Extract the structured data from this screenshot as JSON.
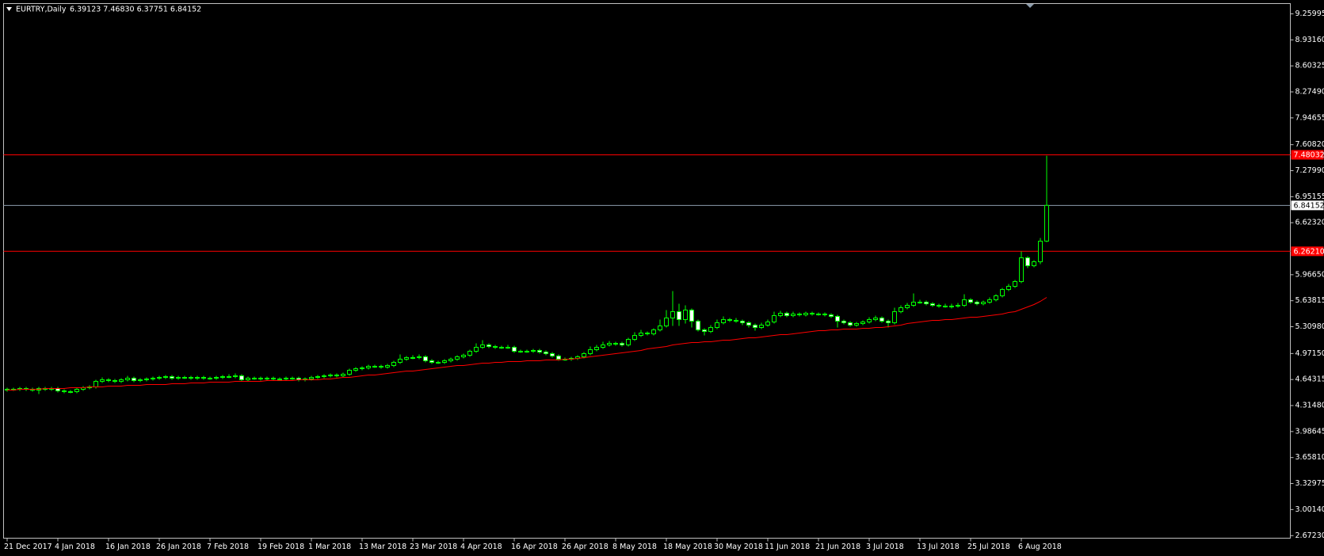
{
  "chart_data": {
    "type": "candlestick",
    "title": "EURTRY,Daily",
    "title_values": "6.39123 7.46830 6.37751 6.84152",
    "background": "#000000",
    "text_color": "#ffffff",
    "candle_colors": {
      "line": "#00ff00",
      "up_body": "#000000",
      "down_body": "#ffffff"
    },
    "ylim": [
      2.64,
      9.39
    ],
    "yticks": [
      9.25995,
      {
        "value": 8.9316,
        "label": "8.93160"
      },
      8.60325,
      {
        "value": 8.2749,
        "label": "8.27490"
      },
      7.94655,
      {
        "value": 7.6082,
        "label": "7.60820"
      },
      {
        "value": 7.2799,
        "label": "7.27990"
      },
      6.95155,
      {
        "value": 6.6232,
        "label": "6.62320"
      },
      {
        "value": 5.9665,
        "label": "5.96650"
      },
      5.63815,
      {
        "value": 5.3098,
        "label": "5.30980"
      },
      {
        "value": 4.9715,
        "label": "4.97150"
      },
      4.64315,
      {
        "value": 4.3148,
        "label": "4.31480"
      },
      3.98645,
      {
        "value": 3.6581,
        "label": "3.65810"
      },
      3.32975,
      {
        "value": 3.0014,
        "label": "3.00140"
      },
      {
        "value": 2.6723,
        "label": "2.67230"
      }
    ],
    "hlines": [
      {
        "value": 7.48032,
        "color": "#ff0000",
        "label_bg": "#ff0000"
      },
      {
        "value": 6.84152,
        "color": "#8c9cac",
        "label_bg": "#ffffff"
      },
      {
        "value": 6.2621,
        "label": "6.26210",
        "color": "#ff0000",
        "label_bg": "#ff0000"
      }
    ],
    "x": [
      "21 Dec 2017",
      null,
      null,
      null,
      null,
      null,
      null,
      null,
      "4 Jan 2018",
      null,
      null,
      null,
      null,
      null,
      null,
      null,
      "16 Jan 2018",
      null,
      null,
      null,
      null,
      null,
      null,
      null,
      "26 Jan 2018",
      null,
      null,
      null,
      null,
      null,
      null,
      null,
      "7 Feb 2018",
      null,
      null,
      null,
      null,
      null,
      null,
      null,
      "19 Feb 2018",
      null,
      null,
      null,
      null,
      null,
      null,
      null,
      "1 Mar 2018",
      null,
      null,
      null,
      null,
      null,
      null,
      null,
      "13 Mar 2018",
      null,
      null,
      null,
      null,
      null,
      null,
      null,
      "23 Mar 2018",
      null,
      null,
      null,
      null,
      null,
      null,
      null,
      "4 Apr 2018",
      null,
      null,
      null,
      null,
      null,
      null,
      null,
      "16 Apr 2018",
      null,
      null,
      null,
      null,
      null,
      null,
      null,
      "26 Apr 2018",
      null,
      null,
      null,
      null,
      null,
      null,
      null,
      "8 May 2018",
      null,
      null,
      null,
      null,
      null,
      null,
      null,
      "18 May 2018",
      null,
      null,
      null,
      null,
      null,
      null,
      null,
      "30 May 2018",
      null,
      null,
      null,
      null,
      null,
      null,
      null,
      "11 Jun 2018",
      null,
      null,
      null,
      null,
      null,
      null,
      null,
      "21 Jun 2018",
      null,
      null,
      null,
      null,
      null,
      null,
      null,
      "3 Jul 2018",
      null,
      null,
      null,
      null,
      null,
      null,
      null,
      "13 Jul 2018",
      null,
      null,
      null,
      null,
      null,
      null,
      null,
      "25 Jul 2018",
      null,
      null,
      null,
      null,
      null,
      null,
      null,
      "6 Aug 2018",
      null,
      null,
      null,
      null
    ],
    "ohlc": [
      [
        4.51,
        4.54,
        4.49,
        4.52
      ],
      [
        4.52,
        4.54,
        4.5,
        4.52
      ],
      [
        4.52,
        4.55,
        4.5,
        4.53
      ],
      [
        4.53,
        4.55,
        4.5,
        4.52
      ],
      [
        4.52,
        4.54,
        4.49,
        4.51
      ],
      [
        4.51,
        4.55,
        4.46,
        4.53
      ],
      [
        4.53,
        4.55,
        4.5,
        4.52
      ],
      [
        4.52,
        4.55,
        4.5,
        4.53
      ],
      [
        4.53,
        4.55,
        4.48,
        4.5
      ],
      [
        4.5,
        4.52,
        4.47,
        4.49
      ],
      [
        4.49,
        4.51,
        4.47,
        4.49
      ],
      [
        4.49,
        4.54,
        4.47,
        4.52
      ],
      [
        4.52,
        4.56,
        4.5,
        4.54
      ],
      [
        4.54,
        4.57,
        4.52,
        4.55
      ],
      [
        4.55,
        4.64,
        4.53,
        4.62
      ],
      [
        4.62,
        4.67,
        4.6,
        4.64
      ],
      [
        4.64,
        4.66,
        4.61,
        4.63
      ],
      [
        4.63,
        4.65,
        4.6,
        4.62
      ],
      [
        4.62,
        4.66,
        4.6,
        4.64
      ],
      [
        4.64,
        4.69,
        4.62,
        4.66
      ],
      [
        4.66,
        4.68,
        4.61,
        4.63
      ],
      [
        4.63,
        4.66,
        4.61,
        4.64
      ],
      [
        4.64,
        4.67,
        4.62,
        4.65
      ],
      [
        4.65,
        4.68,
        4.63,
        4.66
      ],
      [
        4.66,
        4.69,
        4.64,
        4.67
      ],
      [
        4.67,
        4.7,
        4.65,
        4.68
      ],
      [
        4.68,
        4.7,
        4.64,
        4.66
      ],
      [
        4.66,
        4.69,
        4.64,
        4.67
      ],
      [
        4.67,
        4.69,
        4.65,
        4.67
      ],
      [
        4.67,
        4.69,
        4.64,
        4.66
      ],
      [
        4.66,
        4.69,
        4.64,
        4.67
      ],
      [
        4.67,
        4.69,
        4.64,
        4.66
      ],
      [
        4.66,
        4.68,
        4.64,
        4.66
      ],
      [
        4.66,
        4.69,
        4.64,
        4.67
      ],
      [
        4.67,
        4.7,
        4.65,
        4.68
      ],
      [
        4.68,
        4.71,
        4.66,
        4.68
      ],
      [
        4.68,
        4.72,
        4.66,
        4.69
      ],
      [
        4.69,
        4.71,
        4.62,
        4.64
      ],
      [
        4.64,
        4.68,
        4.62,
        4.66
      ],
      [
        4.66,
        4.68,
        4.64,
        4.66
      ],
      [
        4.66,
        4.68,
        4.63,
        4.65
      ],
      [
        4.65,
        4.68,
        4.63,
        4.66
      ],
      [
        4.66,
        4.68,
        4.63,
        4.65
      ],
      [
        4.65,
        4.67,
        4.63,
        4.65
      ],
      [
        4.65,
        4.68,
        4.63,
        4.66
      ],
      [
        4.66,
        4.68,
        4.64,
        4.66
      ],
      [
        4.66,
        4.68,
        4.62,
        4.64
      ],
      [
        4.64,
        4.67,
        4.62,
        4.65
      ],
      [
        4.65,
        4.69,
        4.63,
        4.67
      ],
      [
        4.67,
        4.7,
        4.65,
        4.68
      ],
      [
        4.68,
        4.71,
        4.66,
        4.69
      ],
      [
        4.69,
        4.72,
        4.67,
        4.7
      ],
      [
        4.7,
        4.72,
        4.67,
        4.69
      ],
      [
        4.69,
        4.73,
        4.67,
        4.71
      ],
      [
        4.71,
        4.78,
        4.69,
        4.76
      ],
      [
        4.76,
        4.8,
        4.74,
        4.78
      ],
      [
        4.78,
        4.81,
        4.76,
        4.79
      ],
      [
        4.79,
        4.83,
        4.77,
        4.81
      ],
      [
        4.81,
        4.83,
        4.79,
        4.81
      ],
      [
        4.81,
        4.83,
        4.78,
        4.8
      ],
      [
        4.8,
        4.84,
        4.78,
        4.82
      ],
      [
        4.82,
        4.88,
        4.8,
        4.86
      ],
      [
        4.86,
        4.96,
        4.84,
        4.9
      ],
      [
        4.9,
        4.94,
        4.88,
        4.92
      ],
      [
        4.92,
        4.95,
        4.9,
        4.92
      ],
      [
        4.92,
        4.96,
        4.9,
        4.93
      ],
      [
        4.93,
        4.95,
        4.86,
        4.88
      ],
      [
        4.88,
        4.9,
        4.84,
        4.86
      ],
      [
        4.86,
        4.88,
        4.84,
        4.86
      ],
      [
        4.86,
        4.9,
        4.84,
        4.88
      ],
      [
        4.88,
        4.92,
        4.86,
        4.9
      ],
      [
        4.9,
        4.95,
        4.88,
        4.93
      ],
      [
        4.93,
        4.97,
        4.91,
        4.95
      ],
      [
        4.95,
        5.02,
        4.93,
        5.0
      ],
      [
        5.0,
        5.1,
        4.98,
        5.05
      ],
      [
        5.05,
        5.14,
        5.03,
        5.08
      ],
      [
        5.08,
        5.1,
        5.04,
        5.06
      ],
      [
        5.06,
        5.08,
        5.03,
        5.05
      ],
      [
        5.05,
        5.07,
        5.03,
        5.05
      ],
      [
        5.05,
        5.08,
        5.03,
        5.05
      ],
      [
        5.05,
        5.07,
        4.98,
        5.0
      ],
      [
        5.0,
        5.02,
        4.98,
        5.0
      ],
      [
        5.0,
        5.02,
        4.98,
        5.0
      ],
      [
        5.0,
        5.03,
        4.98,
        5.01
      ],
      [
        5.01,
        5.03,
        4.97,
        4.99
      ],
      [
        4.99,
        5.01,
        4.95,
        4.97
      ],
      [
        4.97,
        4.99,
        4.92,
        4.94
      ],
      [
        4.94,
        4.96,
        4.88,
        4.9
      ],
      [
        4.9,
        4.92,
        4.88,
        4.9
      ],
      [
        4.9,
        4.93,
        4.88,
        4.91
      ],
      [
        4.91,
        4.95,
        4.89,
        4.93
      ],
      [
        4.93,
        4.99,
        4.91,
        4.97
      ],
      [
        4.97,
        5.06,
        4.95,
        5.02
      ],
      [
        5.02,
        5.08,
        5.0,
        5.05
      ],
      [
        5.05,
        5.12,
        5.03,
        5.08
      ],
      [
        5.08,
        5.13,
        5.06,
        5.1
      ],
      [
        5.1,
        5.12,
        5.07,
        5.1
      ],
      [
        5.1,
        5.12,
        5.06,
        5.08
      ],
      [
        5.08,
        5.17,
        5.06,
        5.15
      ],
      [
        5.15,
        5.24,
        5.13,
        5.2
      ],
      [
        5.2,
        5.27,
        5.18,
        5.23
      ],
      [
        5.23,
        5.25,
        5.2,
        5.22
      ],
      [
        5.22,
        5.29,
        5.2,
        5.27
      ],
      [
        5.27,
        5.4,
        5.25,
        5.32
      ],
      [
        5.32,
        5.52,
        5.3,
        5.42
      ],
      [
        5.42,
        5.76,
        5.32,
        5.5
      ],
      [
        5.5,
        5.6,
        5.32,
        5.4
      ],
      [
        5.4,
        5.58,
        5.35,
        5.52
      ],
      [
        5.52,
        5.54,
        5.3,
        5.38
      ],
      [
        5.38,
        5.4,
        5.25,
        5.27
      ],
      [
        5.27,
        5.29,
        5.2,
        5.25
      ],
      [
        5.25,
        5.33,
        5.23,
        5.3
      ],
      [
        5.3,
        5.4,
        5.28,
        5.36
      ],
      [
        5.36,
        5.44,
        5.34,
        5.4
      ],
      [
        5.4,
        5.42,
        5.37,
        5.39
      ],
      [
        5.39,
        5.42,
        5.36,
        5.38
      ],
      [
        5.38,
        5.4,
        5.33,
        5.36
      ],
      [
        5.36,
        5.38,
        5.3,
        5.33
      ],
      [
        5.33,
        5.35,
        5.26,
        5.3
      ],
      [
        5.3,
        5.36,
        5.28,
        5.33
      ],
      [
        5.33,
        5.4,
        5.31,
        5.37
      ],
      [
        5.37,
        5.5,
        5.35,
        5.45
      ],
      [
        5.45,
        5.51,
        5.43,
        5.48
      ],
      [
        5.48,
        5.5,
        5.43,
        5.45
      ],
      [
        5.45,
        5.5,
        5.43,
        5.47
      ],
      [
        5.47,
        5.49,
        5.44,
        5.46
      ],
      [
        5.46,
        5.5,
        5.44,
        5.48
      ],
      [
        5.48,
        5.5,
        5.45,
        5.47
      ],
      [
        5.47,
        5.49,
        5.45,
        5.47
      ],
      [
        5.47,
        5.49,
        5.44,
        5.46
      ],
      [
        5.46,
        5.48,
        5.42,
        5.44
      ],
      [
        5.44,
        5.46,
        5.3,
        5.38
      ],
      [
        5.38,
        5.4,
        5.34,
        5.36
      ],
      [
        5.36,
        5.38,
        5.31,
        5.33
      ],
      [
        5.33,
        5.37,
        5.31,
        5.35
      ],
      [
        5.35,
        5.39,
        5.33,
        5.37
      ],
      [
        5.37,
        5.43,
        5.35,
        5.4
      ],
      [
        5.4,
        5.45,
        5.38,
        5.42
      ],
      [
        5.42,
        5.44,
        5.36,
        5.38
      ],
      [
        5.38,
        5.4,
        5.3,
        5.36
      ],
      [
        5.36,
        5.55,
        5.34,
        5.5
      ],
      [
        5.5,
        5.58,
        5.48,
        5.55
      ],
      [
        5.55,
        5.61,
        5.53,
        5.58
      ],
      [
        5.58,
        5.73,
        5.56,
        5.62
      ],
      [
        5.62,
        5.65,
        5.6,
        5.62
      ],
      [
        5.62,
        5.64,
        5.58,
        5.6
      ],
      [
        5.6,
        5.62,
        5.56,
        5.58
      ],
      [
        5.58,
        5.6,
        5.55,
        5.57
      ],
      [
        5.57,
        5.6,
        5.55,
        5.57
      ],
      [
        5.57,
        5.6,
        5.54,
        5.57
      ],
      [
        5.57,
        5.61,
        5.55,
        5.58
      ],
      [
        5.58,
        5.72,
        5.56,
        5.65
      ],
      [
        5.65,
        5.67,
        5.6,
        5.62
      ],
      [
        5.62,
        5.64,
        5.58,
        5.6
      ],
      [
        5.6,
        5.64,
        5.58,
        5.62
      ],
      [
        5.62,
        5.68,
        5.6,
        5.65
      ],
      [
        5.65,
        5.72,
        5.63,
        5.7
      ],
      [
        5.7,
        5.8,
        5.68,
        5.78
      ],
      [
        5.78,
        5.85,
        5.76,
        5.82
      ],
      [
        5.82,
        5.9,
        5.8,
        5.88
      ],
      [
        5.88,
        6.26,
        5.86,
        6.18
      ],
      [
        6.18,
        6.2,
        6.05,
        6.08
      ],
      [
        6.08,
        6.15,
        6.06,
        6.13
      ],
      [
        6.13,
        6.43,
        6.1,
        6.39
      ],
      [
        6.39123,
        7.4683,
        6.37751,
        6.84152
      ]
    ],
    "ma": {
      "color": "#ff0000",
      "values": [
        4.51,
        4.51,
        4.52,
        4.52,
        4.52,
        4.52,
        4.53,
        4.53,
        4.53,
        4.53,
        4.54,
        4.54,
        4.54,
        4.55,
        4.55,
        4.55,
        4.56,
        4.56,
        4.56,
        4.57,
        4.57,
        4.57,
        4.58,
        4.58,
        4.58,
        4.58,
        4.59,
        4.59,
        4.59,
        4.6,
        4.6,
        4.6,
        4.61,
        4.61,
        4.61,
        4.61,
        4.62,
        4.62,
        4.62,
        4.62,
        4.62,
        4.63,
        4.63,
        4.63,
        4.63,
        4.63,
        4.64,
        4.64,
        4.64,
        4.64,
        4.65,
        4.65,
        4.66,
        4.67,
        4.67,
        4.68,
        4.69,
        4.7,
        4.7,
        4.71,
        4.72,
        4.73,
        4.74,
        4.75,
        4.75,
        4.76,
        4.77,
        4.78,
        4.79,
        4.8,
        4.81,
        4.82,
        4.82,
        4.83,
        4.84,
        4.85,
        4.85,
        4.86,
        4.86,
        4.87,
        4.87,
        4.87,
        4.88,
        4.88,
        4.88,
        4.89,
        4.89,
        4.89,
        4.9,
        4.9,
        4.91,
        4.92,
        4.93,
        4.94,
        4.95,
        4.96,
        4.97,
        4.98,
        4.99,
        5.0,
        5.01,
        5.03,
        5.04,
        5.05,
        5.06,
        5.08,
        5.09,
        5.1,
        5.11,
        5.11,
        5.12,
        5.12,
        5.13,
        5.14,
        5.14,
        5.15,
        5.16,
        5.17,
        5.17,
        5.18,
        5.19,
        5.2,
        5.21,
        5.21,
        5.22,
        5.23,
        5.24,
        5.25,
        5.26,
        5.26,
        5.27,
        5.27,
        5.28,
        5.28,
        5.28,
        5.29,
        5.29,
        5.3,
        5.3,
        5.31,
        5.32,
        5.33,
        5.35,
        5.36,
        5.37,
        5.38,
        5.39,
        5.39,
        5.4,
        5.4,
        5.41,
        5.42,
        5.43,
        5.43,
        5.44,
        5.45,
        5.46,
        5.47,
        5.49,
        5.5,
        5.53,
        5.56,
        5.59,
        5.63,
        5.68
      ]
    }
  }
}
